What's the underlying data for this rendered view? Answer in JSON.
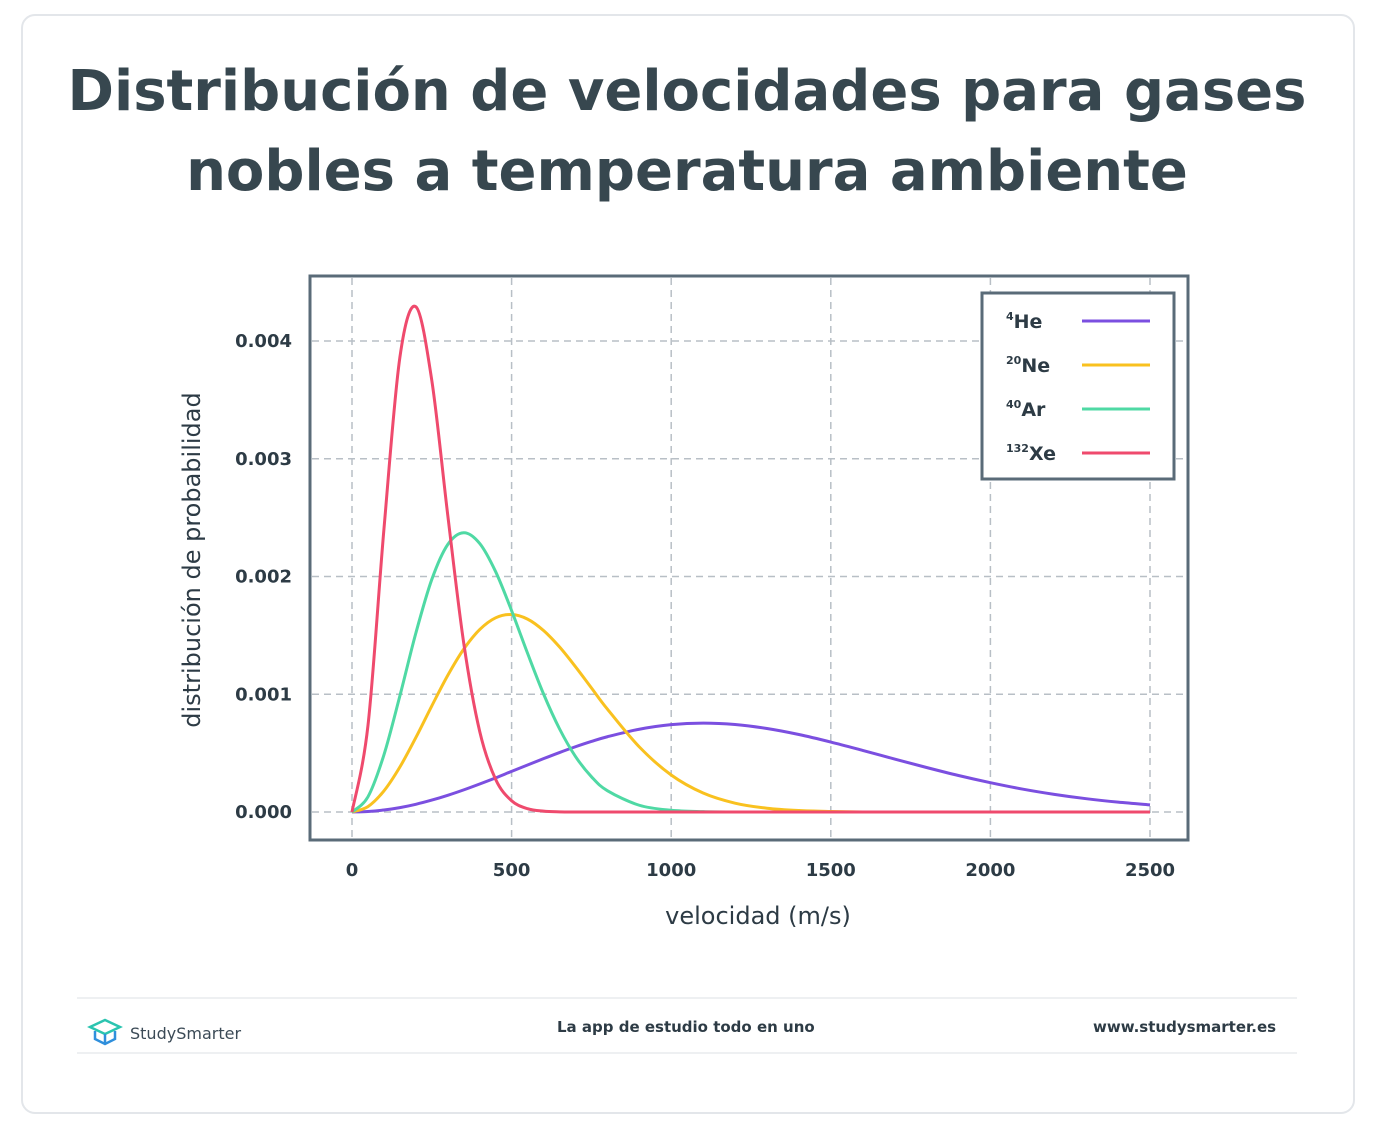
{
  "title": "Distribución de velocidades para gases nobles a temperatura ambiente",
  "chart_data": {
    "type": "line",
    "title": "Distribución de velocidades para gases nobles a temperatura ambiente",
    "xlabel": "velocidad (m/s)",
    "ylabel": "distribución de probabilidad",
    "xlim": [
      -125,
      2625
    ],
    "ylim": [
      -0.00023,
      0.0045
    ],
    "xticks": [
      "0",
      "500",
      "1000",
      "1500",
      "2000",
      "2500"
    ],
    "yticks": [
      "0.000",
      "0.001",
      "0.002",
      "0.003",
      "0.004"
    ],
    "grid": true,
    "legend_position": "top-right",
    "x": [
      0,
      50,
      100,
      150,
      200,
      250,
      300,
      350,
      400,
      450,
      500,
      550,
      600,
      650,
      700,
      750,
      800,
      900,
      1000,
      1100,
      1200,
      1300,
      1400,
      1500,
      1600,
      1700,
      1800,
      1900,
      2000,
      2100,
      2200,
      2300,
      2400,
      2500
    ],
    "series": [
      {
        "name": "He",
        "sup": "4",
        "color": "#7b4fe0",
        "values": [
          0,
          4.2e-06,
          1.68e-05,
          3.74e-05,
          6.56e-05,
          0.000101,
          0.000142,
          0.000188,
          0.000238,
          0.00029,
          0.000345,
          0.000399,
          0.000453,
          0.000505,
          0.000554,
          0.000599,
          0.000639,
          0.000703,
          0.000742,
          0.000755,
          0.000743,
          0.000709,
          0.000658,
          0.000594,
          0.000523,
          0.00045,
          0.000378,
          0.00031,
          0.000249,
          0.000195,
          0.00015,
          0.000113,
          8.37e-05,
          6.05e-05
        ]
      },
      {
        "name": "Ne",
        "sup": "20",
        "color": "#f9c11f",
        "values": [
          0,
          4.6e-05,
          0.000179,
          0.000382,
          0.000632,
          0.000901,
          0.00116,
          0.001383,
          0.001549,
          0.001649,
          0.001677,
          0.001638,
          0.001541,
          0.001402,
          0.001234,
          0.001054,
          0.000874,
          0.000553,
          0.000314,
          0.000161,
          7.5e-05,
          3.18e-05,
          1.23e-05,
          4.3e-06,
          0,
          0,
          0,
          0,
          0,
          0,
          0,
          0,
          0,
          0
        ]
      },
      {
        "name": "Ar",
        "sup": "40",
        "color": "#4fd9a4",
        "values": [
          0,
          0.000129,
          0.000485,
          0.000986,
          0.001519,
          0.001975,
          0.002272,
          0.002372,
          0.002281,
          0.002041,
          0.00171,
          0.001348,
          0.001003,
          0.000707,
          0.000472,
          0.0003,
          0.000181,
          5.73e-05,
          1.5e-05,
          3.3e-06,
          0,
          0,
          0,
          0,
          0,
          0,
          0,
          0,
          0,
          0,
          0,
          0,
          0,
          0
        ]
      },
      {
        "name": "Xe",
        "sup": "132",
        "color": "#ef4a6d",
        "values": [
          0,
          0.000734,
          0.0024,
          0.003861,
          0.004291,
          0.003665,
          0.002521,
          0.001435,
          0.000685,
          0.000277,
          9.55e-05,
          2.82e-05,
          7.2e-06,
          1.3e-06,
          0,
          0,
          0,
          0,
          0,
          0,
          0,
          0,
          0,
          0,
          0,
          0,
          0,
          0,
          0,
          0,
          0,
          0,
          0,
          0
        ]
      }
    ]
  },
  "footer": {
    "brand": "StudySmarter",
    "tagline": "La app de estudio todo en uno",
    "url": "www.studysmarter.es"
  }
}
